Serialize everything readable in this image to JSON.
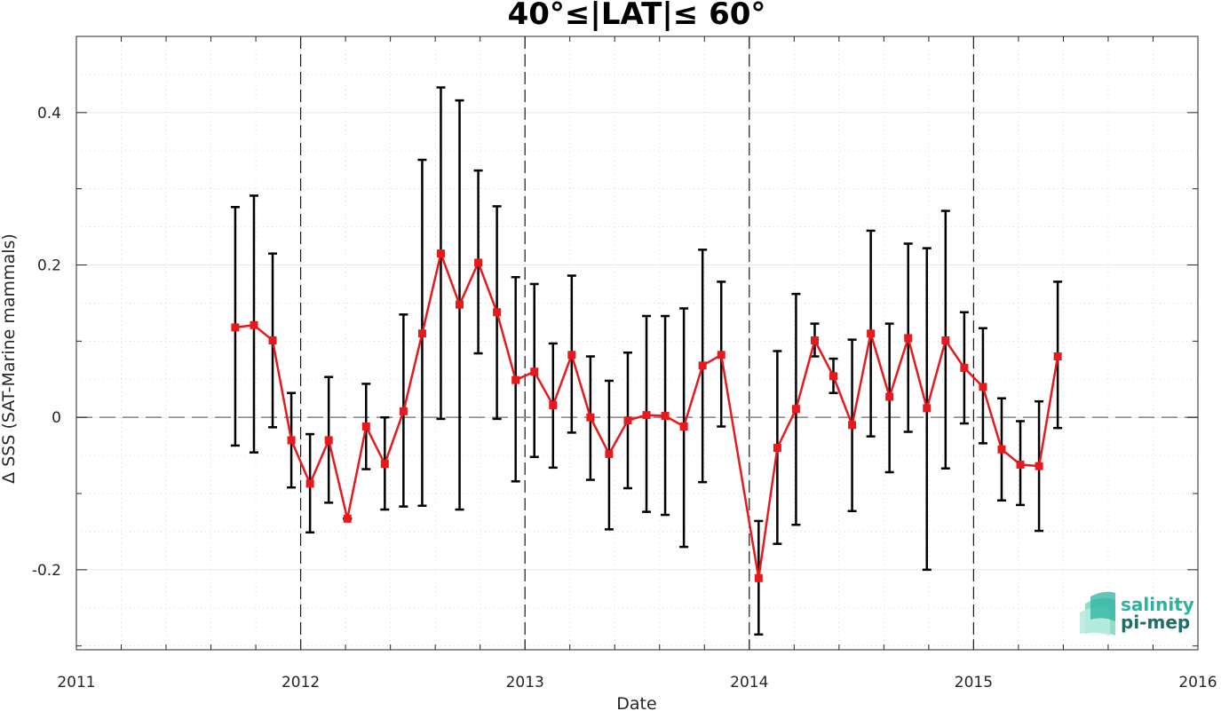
{
  "chart_data": {
    "type": "line",
    "title": "40°≤|LAT|≤ 60°",
    "xlabel": "Date",
    "ylabel": "Δ SSS (SAT-Marine mammals)",
    "xlim": [
      2011,
      2016
    ],
    "ylim": [
      -0.305,
      0.5
    ],
    "x_ticks": [
      2011,
      2012,
      2013,
      2014,
      2015,
      2016
    ],
    "x_tick_labels": [
      "2011",
      "2012",
      "2013",
      "2014",
      "2015",
      "2016"
    ],
    "y_ticks": [
      -0.2,
      0,
      0.2,
      0.4
    ],
    "y_tick_labels": [
      "-0.2",
      "0",
      "0.2",
      "0.4"
    ],
    "grid": true,
    "year_dividers": [
      2012,
      2013,
      2014,
      2015
    ],
    "zero_line": 0,
    "line_color": "#e8191d",
    "marker_color": "#e8191d",
    "errorbar_color": "#000000",
    "series": [
      {
        "x": [
          "2011-09",
          "2011-10",
          "2011-11",
          "2011-12",
          "2012-01",
          "2012-02",
          "2012-03",
          "2012-04",
          "2012-05",
          "2012-06",
          "2012-07",
          "2012-08",
          "2012-09",
          "2012-10",
          "2012-11",
          "2012-12",
          "2013-01",
          "2013-02",
          "2013-03",
          "2013-04",
          "2013-05",
          "2013-06",
          "2013-07",
          "2013-08",
          "2013-09",
          "2013-10",
          "2013-11",
          "2014-01",
          "2014-02",
          "2014-03",
          "2014-04",
          "2014-05",
          "2014-06",
          "2014-07",
          "2014-08",
          "2014-09",
          "2014-10",
          "2014-11",
          "2014-12",
          "2015-01",
          "2015-02",
          "2015-03",
          "2015-04",
          "2015-05"
        ],
        "y": [
          0.118,
          0.121,
          0.101,
          -0.03,
          -0.087,
          -0.03,
          -0.133,
          -0.012,
          -0.061,
          0.008,
          0.11,
          0.215,
          0.148,
          0.203,
          0.138,
          0.049,
          0.06,
          0.016,
          0.082,
          0.0,
          -0.048,
          -0.004,
          0.003,
          0.002,
          -0.012,
          0.068,
          0.082,
          -0.211,
          -0.04,
          0.011,
          0.101,
          0.054,
          -0.01,
          0.11,
          0.027,
          0.104,
          0.012,
          0.101,
          0.065,
          0.04,
          -0.042,
          -0.062,
          -0.064,
          0.08
        ],
        "err_low": [
          -0.037,
          -0.046,
          -0.013,
          -0.092,
          -0.151,
          -0.112,
          -0.133,
          -0.068,
          -0.121,
          -0.117,
          -0.116,
          -0.002,
          -0.121,
          0.084,
          -0.002,
          -0.084,
          -0.052,
          -0.066,
          -0.02,
          -0.082,
          -0.147,
          -0.093,
          -0.124,
          -0.128,
          -0.17,
          -0.085,
          -0.012,
          -0.285,
          -0.166,
          -0.141,
          0.08,
          0.032,
          -0.123,
          -0.025,
          -0.072,
          -0.019,
          -0.2,
          -0.067,
          -0.008,
          -0.034,
          -0.109,
          -0.115,
          -0.149,
          -0.014
        ],
        "err_high": [
          0.276,
          0.291,
          0.215,
          0.032,
          -0.022,
          0.053,
          -0.133,
          0.044,
          0.0,
          0.135,
          0.338,
          0.433,
          0.416,
          0.324,
          0.277,
          0.184,
          0.175,
          0.097,
          0.186,
          0.08,
          0.048,
          0.085,
          0.133,
          0.133,
          0.143,
          0.22,
          0.178,
          -0.136,
          0.087,
          0.162,
          0.123,
          0.077,
          0.102,
          0.245,
          0.123,
          0.228,
          0.222,
          0.271,
          0.138,
          0.117,
          0.025,
          -0.005,
          0.021,
          0.178
        ]
      }
    ]
  },
  "logo": {
    "line1": "salinity",
    "line2": "pi-mep",
    "color1": "#2ab3a0",
    "color2": "#1e6e68"
  }
}
